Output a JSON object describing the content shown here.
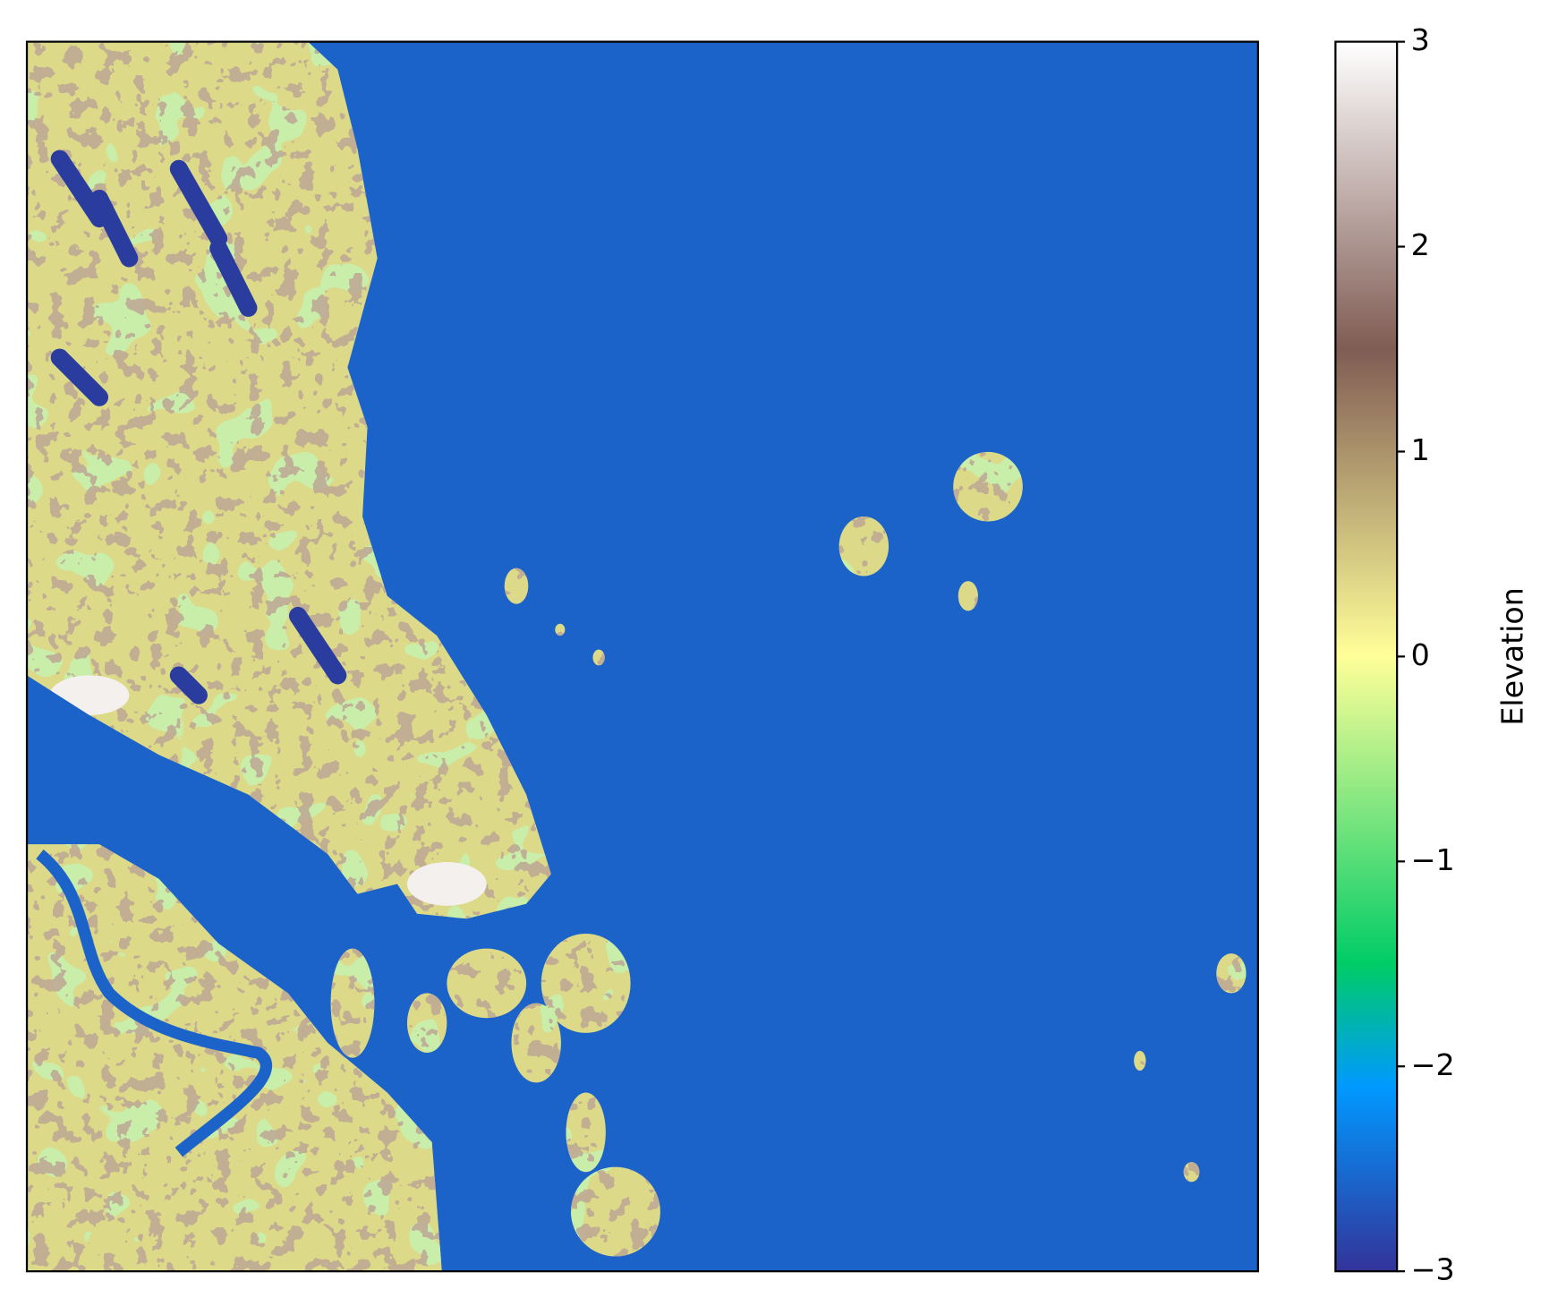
{
  "chart_data": {
    "type": "heatmap",
    "colorbar": {
      "label": "Elevation",
      "colormap": "terrain",
      "clim": [
        -3,
        3
      ],
      "ticks": [
        {
          "value": -3,
          "label": "−3"
        },
        {
          "value": -2,
          "label": "−2"
        },
        {
          "value": -1,
          "label": "−1"
        },
        0,
        1,
        2,
        3
      ]
    }
  }
}
